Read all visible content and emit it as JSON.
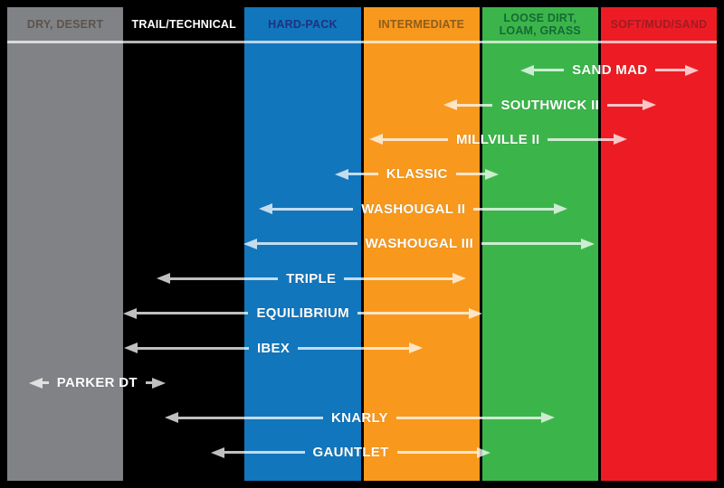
{
  "chart_data": {
    "type": "bar",
    "subtype": "horizontal-range-span",
    "title": "",
    "legend": "none",
    "x_domain": [
      0,
      6
    ],
    "x_unit": "terrain columns (0 = left edge of first column, 6 = right edge of last column)",
    "terrain_categories": [
      {
        "label": "DRY, DESERT",
        "color": "#808285",
        "text_color": "#5b534d"
      },
      {
        "label": "TRAIL/TECHNICAL",
        "color": "#000000",
        "text_color": "#ffffff"
      },
      {
        "label": "HARD-PACK",
        "color": "#1276bc",
        "text_color": "#1e3280"
      },
      {
        "label": "INTERMEDIATE",
        "color": "#f8991d",
        "text_color": "#8e5c1e"
      },
      {
        "label": "LOOSE DIRT, LOAM, GRASS",
        "color": "#3bb54a",
        "text_color": "#156a35"
      },
      {
        "label": "SOFT/MUD/SAND",
        "color": "#ed1c24",
        "text_color": "#9e1c22"
      }
    ],
    "tires": [
      {
        "label": "SAND MAD",
        "range": [
          4.34,
          5.85
        ]
      },
      {
        "label": "SOUTHWICK II",
        "range": [
          3.69,
          5.49
        ]
      },
      {
        "label": "MILLVILLE II",
        "range": [
          3.06,
          5.24
        ]
      },
      {
        "label": "KLASSIC",
        "range": [
          2.77,
          4.16
        ]
      },
      {
        "label": "WASHOUGAL II",
        "range": [
          2.13,
          4.74
        ]
      },
      {
        "label": "WASHOUGAL III",
        "range": [
          2.0,
          4.97
        ]
      },
      {
        "label": "TRIPLE",
        "range": [
          1.26,
          3.88
        ]
      },
      {
        "label": "EQUILIBRIUM",
        "range": [
          0.98,
          4.02
        ]
      },
      {
        "label": "IBEX",
        "range": [
          0.99,
          3.51
        ]
      },
      {
        "label": "PARKER DT",
        "range": [
          0.18,
          1.34
        ]
      },
      {
        "label": "KNARLY",
        "range": [
          1.33,
          4.63
        ]
      },
      {
        "label": "GAUNTLET",
        "range": [
          1.72,
          4.09
        ]
      }
    ],
    "colors": {
      "background": "#000000",
      "arrow": "rgba(255,255,255,0.75)",
      "tire_label": "#ffffff",
      "header_rule": "rgba(255,255,255,0.70)"
    }
  }
}
